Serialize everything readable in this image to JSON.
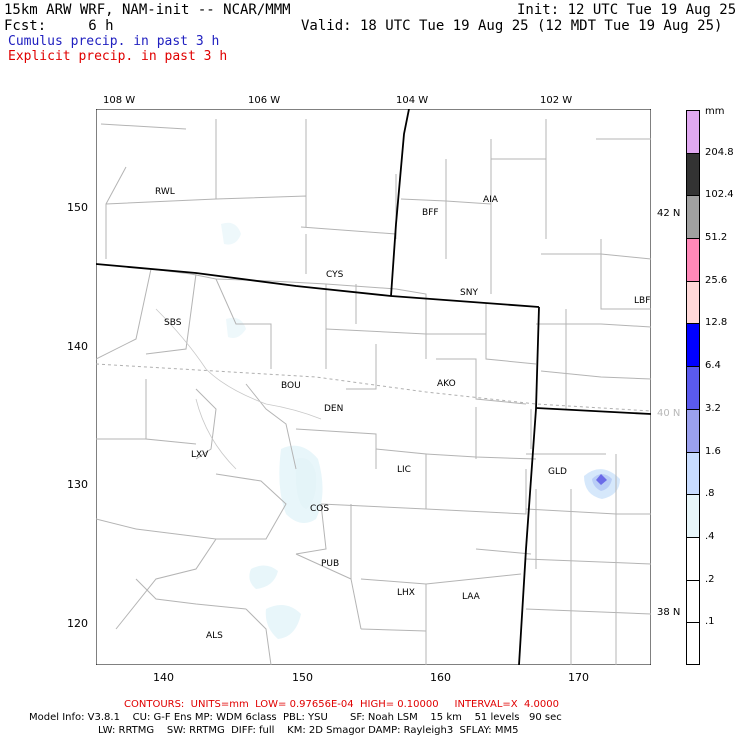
{
  "header": {
    "line1_left": "15km ARW WRF, NAM-init -- NCAR/MMM",
    "line1_right": "Init: 12 UTC Tue 19 Aug 25",
    "line2_left": "Fcst:     6 h",
    "line2_right": "Valid: 18 UTC Tue 19 Aug 25 (12 MDT Tue 19 Aug 25)",
    "cumulus": "Cumulus precip. in past 3 h",
    "explicit": "Explicit precip. in past 3 h"
  },
  "colors": {
    "cumulus": "#2020c0",
    "explicit": "#e00000",
    "state_line": "#000000",
    "county_line": "#b0b0b0"
  },
  "map": {
    "top_longitudes": [
      "108 W",
      "106 W",
      "104 W",
      "102 W"
    ],
    "right_latitudes": [
      "42 N",
      "40 N",
      "38 N"
    ],
    "left_ticks": [
      "150",
      "140",
      "130",
      "120"
    ],
    "bottom_ticks": [
      "140",
      "150",
      "160",
      "170"
    ],
    "cities": [
      "RWL",
      "BFF",
      "AIA",
      "CYS",
      "SNY",
      "LBF",
      "SBS",
      "BOU",
      "AKO",
      "DEN",
      "LXV",
      "LIC",
      "GLD",
      "COS",
      "PUB",
      "LHX",
      "LAA",
      "ALS"
    ]
  },
  "colorbar": {
    "unit": "mm",
    "levels": [
      "204.8",
      "102.4",
      "51.2",
      "25.6",
      "12.8",
      "6.4",
      "3.2",
      "1.6",
      ".8",
      ".4",
      ".2",
      ".1"
    ],
    "colors": [
      "#e0a8f0",
      "#333333",
      "#a0a0a0",
      "#ff88b8",
      "#ffd8d8",
      "#0000ff",
      "#5a5aee",
      "#9aa0ee",
      "#c8dcff",
      "#e8f6fa",
      "#ffffff",
      "#ffffff",
      "#ffffff"
    ]
  },
  "footer": {
    "contours": "CONTOURS:  UNITS=mm  LOW= 0.97656E-04  HIGH= 0.10000     INTERVAL=X  4.0000",
    "model_info_1": "Model Info: V3.8.1    CU: G-F Ens MP: WDM 6class  PBL: YSU       SF: Noah LSM    15 km    51 levels   90 sec",
    "model_info_2": "LW: RRTMG    SW: RRTMG  DIFF: full    KM: 2D Smagor DAMP: Rayleigh3  SFLAY: MM5"
  }
}
